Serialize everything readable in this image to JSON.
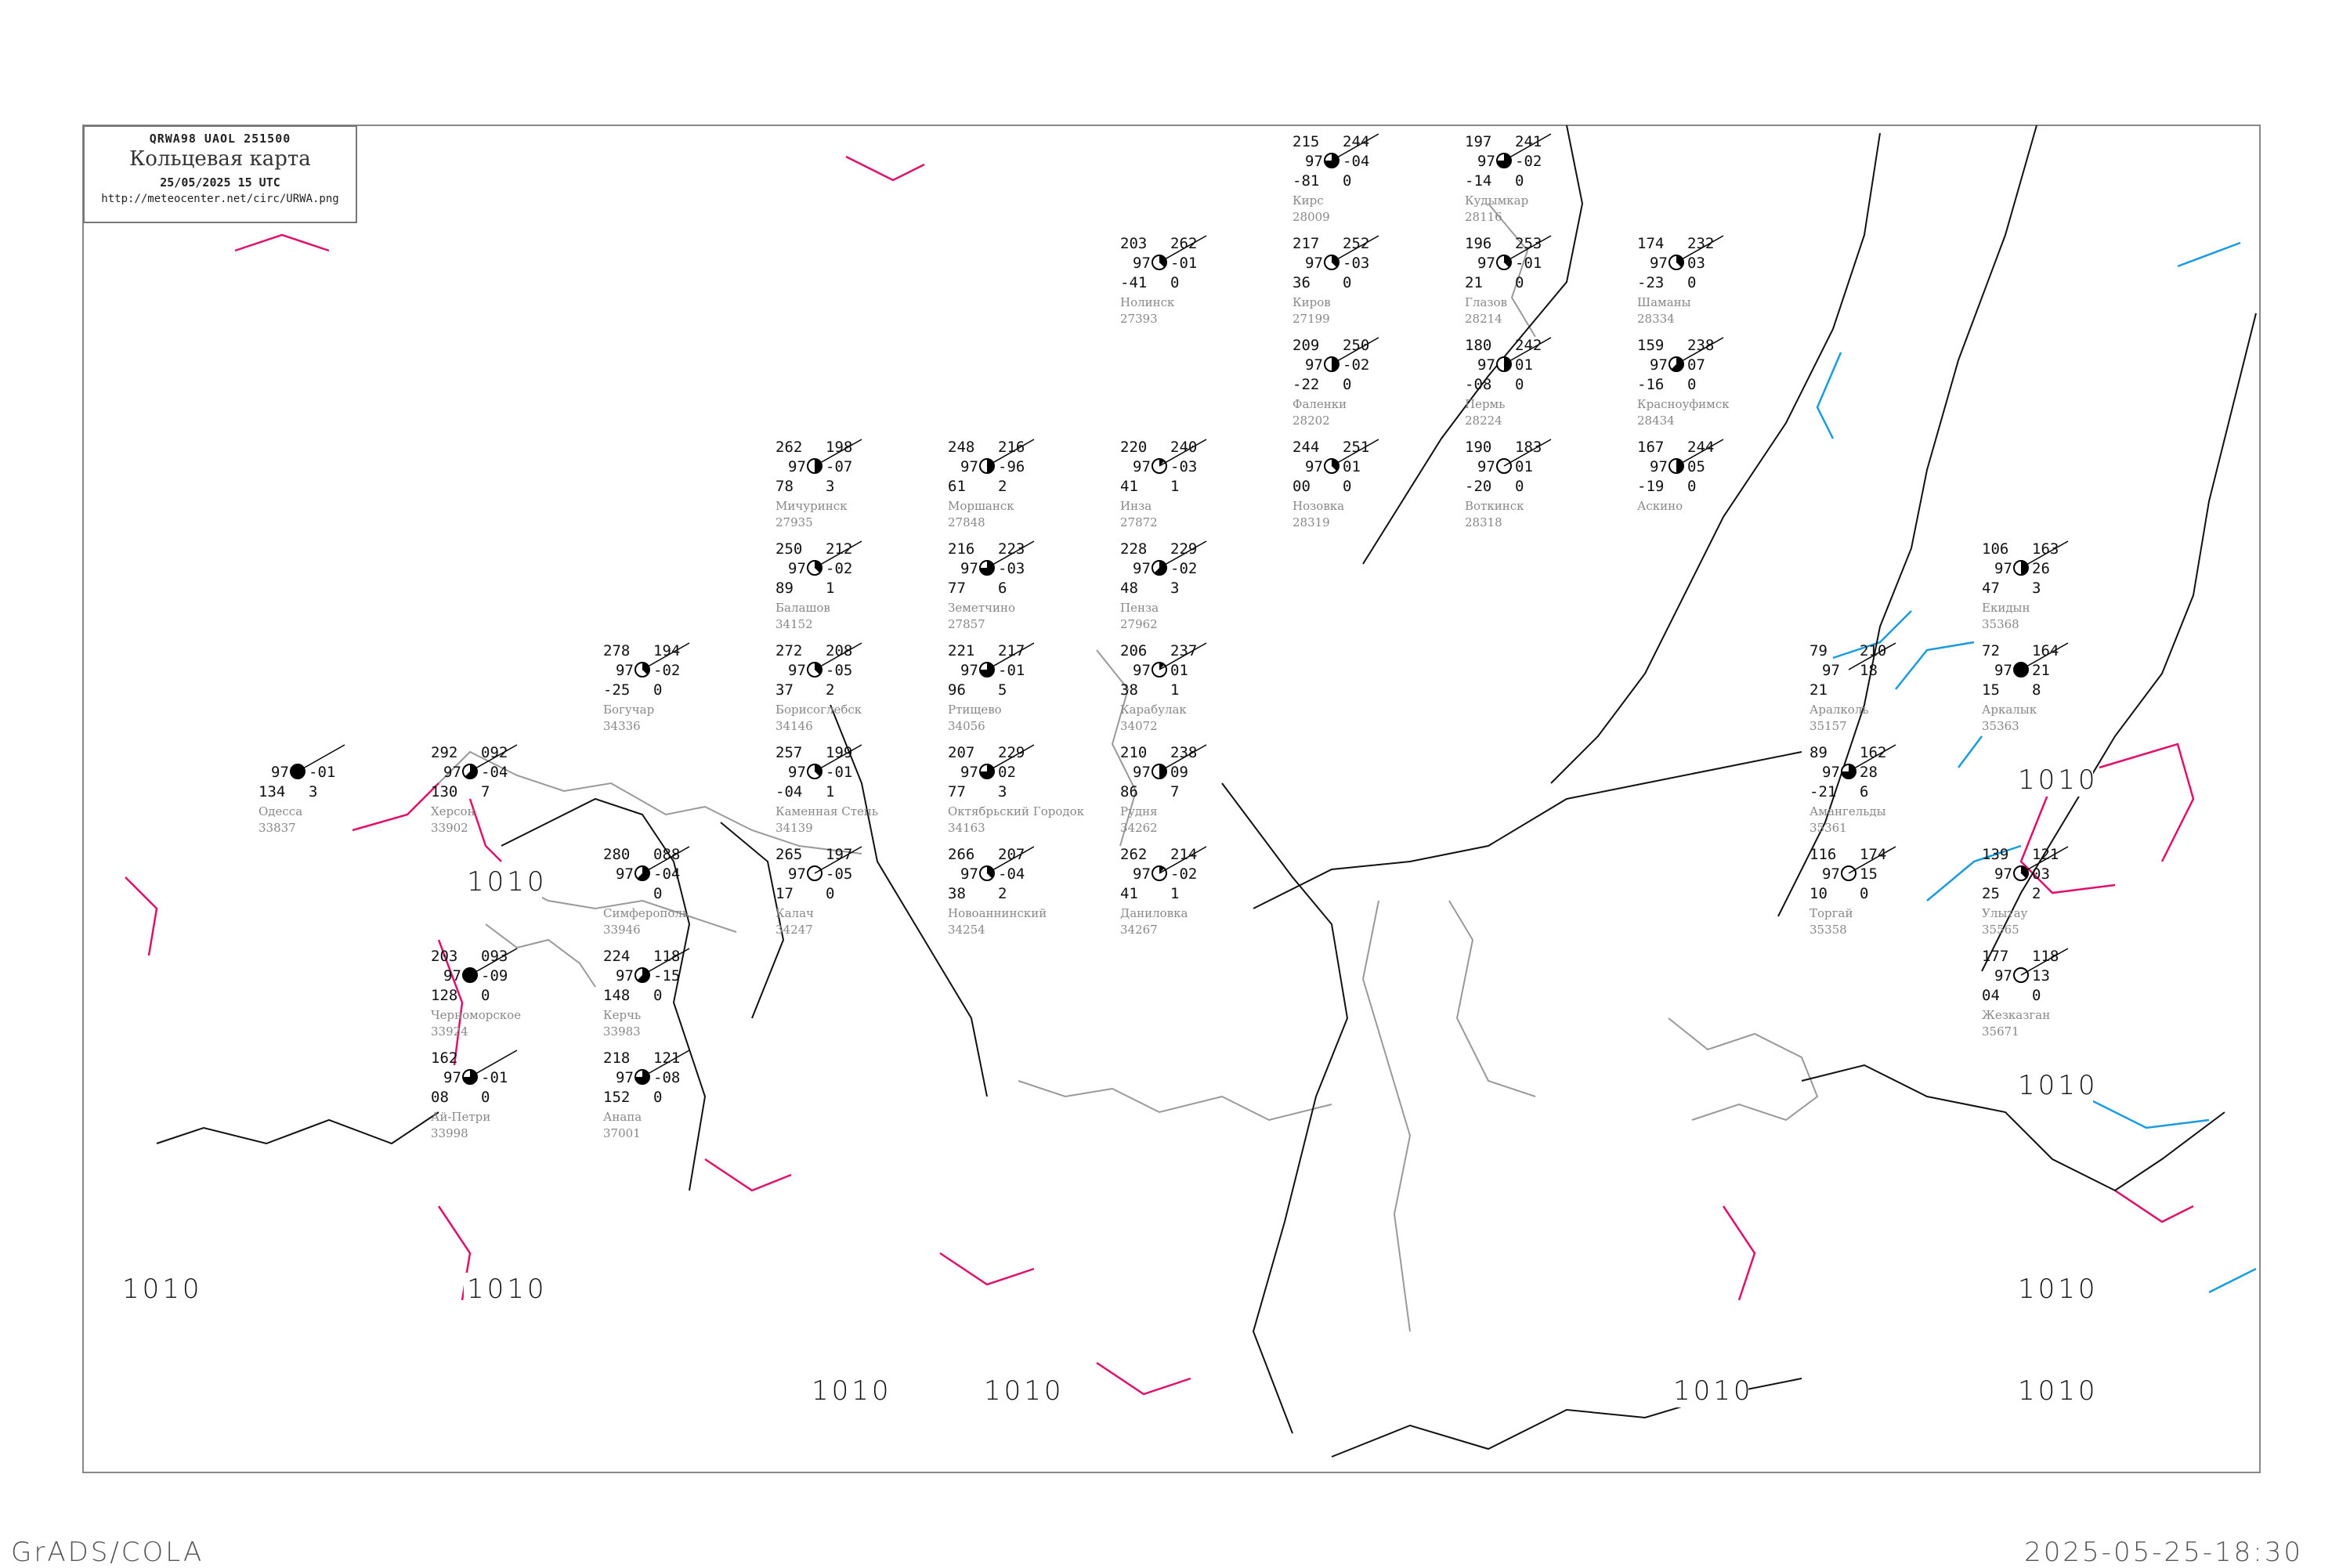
{
  "header": {
    "code": "QRWA98  UAOL  251500",
    "title": "Кольцевая карта",
    "datetime": "25/05/2025 15 UTC",
    "url": "http://meteocenter.net/circ/URWA.png"
  },
  "footer": {
    "software": "GrADS/COLA",
    "timestamp": "2025-05-25-18:30"
  },
  "colors": {
    "isobar": "#111111",
    "coastline": "#999999",
    "isallobar_positive": "#e0106a",
    "isallobar_negative": "#1a9be0",
    "station_name": "#888888"
  },
  "isobar_labels": [
    "1010",
    "1010",
    "1010",
    "1010",
    "1010",
    "1010",
    "1010",
    "1010",
    "1010",
    "1010"
  ],
  "stations": [
    {
      "name": "Моршанск",
      "index": "27848",
      "tl": "248",
      "tr": "216",
      "ml": "97",
      "mr": "-96",
      "bl": "61",
      "br": "2",
      "cloud": 4
    },
    {
      "name": "Земетчино",
      "index": "27857",
      "tl": "216",
      "tr": "223",
      "ml": "97",
      "mr": "-03",
      "bl": "77",
      "br": "6",
      "cloud": 6
    },
    {
      "name": "Мичуринск",
      "index": "27935",
      "tl": "262",
      "tr": "198",
      "ml": "97",
      "mr": "-07",
      "bl": "78",
      "br": "3",
      "cloud": 4
    },
    {
      "name": "Пенза",
      "index": "27962",
      "tl": "228",
      "tr": "229",
      "ml": "97",
      "mr": "-02",
      "bl": "48",
      "br": "3",
      "cloud": 5
    },
    {
      "name": "Инза",
      "index": "27872",
      "tl": "220",
      "tr": "240",
      "ml": "97",
      "mr": "-03",
      "bl": "41",
      "br": "1",
      "cloud": 1
    },
    {
      "name": "Ртищево",
      "index": "34056",
      "tl": "221",
      "tr": "217",
      "ml": "97",
      "mr": "-01",
      "bl": "96",
      "br": "5",
      "cloud": 6
    },
    {
      "name": "Балашов",
      "index": "34152",
      "tl": "250",
      "tr": "212",
      "ml": "97",
      "mr": "-02",
      "bl": "89",
      "br": "1",
      "cloud": 3
    },
    {
      "name": "Борисоглебск",
      "index": "34146",
      "tl": "272",
      "tr": "208",
      "ml": "97",
      "mr": "-05",
      "bl": "37",
      "br": "2",
      "cloud": 3
    },
    {
      "name": "Каменная Степь",
      "index": "34139",
      "tl": "257",
      "tr": "199",
      "ml": "97",
      "mr": "-01",
      "bl": "-04",
      "br": "1",
      "cloud": 3
    },
    {
      "name": "Карабулак",
      "index": "34072",
      "tl": "206",
      "tr": "237",
      "ml": "97",
      "mr": "01",
      "bl": "38",
      "br": "1",
      "cloud": 1
    },
    {
      "name": "Октябрьский Городок",
      "index": "34163",
      "tl": "207",
      "tr": "229",
      "ml": "97",
      "mr": "02",
      "bl": "77",
      "br": "3",
      "cloud": 6
    },
    {
      "name": "Калач",
      "index": "34247",
      "tl": "265",
      "tr": "197",
      "ml": "97",
      "mr": "-05",
      "bl": "17",
      "br": "0",
      "cloud": 0
    },
    {
      "name": "Новоаннинский",
      "index": "34254",
      "tl": "266",
      "tr": "207",
      "ml": "97",
      "mr": "-04",
      "bl": "38",
      "br": "2",
      "cloud": 3
    },
    {
      "name": "Рудня",
      "index": "34262",
      "tl": "210",
      "tr": "238",
      "ml": "97",
      "mr": "09",
      "bl": "86",
      "br": "7",
      "cloud": 4
    },
    {
      "name": "Даниловка",
      "index": "34267",
      "tl": "262",
      "tr": "214",
      "ml": "97",
      "mr": "-02",
      "bl": "41",
      "br": "1",
      "cloud": 1
    },
    {
      "name": "Богучар",
      "index": "34336",
      "tl": "278",
      "tr": "194",
      "ml": "97",
      "mr": "-02",
      "bl": "-25",
      "br": "0",
      "cloud": 3
    },
    {
      "name": "Кирс",
      "index": "28009",
      "tl": "215",
      "tr": "244",
      "ml": "97",
      "mr": "-04",
      "bl": "-81",
      "br": "0",
      "cloud": 6
    },
    {
      "name": "Кудымкар",
      "index": "28116",
      "tl": "197",
      "tr": "241",
      "ml": "97",
      "mr": "-02",
      "bl": "-14",
      "br": "0",
      "cloud": 6
    },
    {
      "name": "Киров",
      "index": "27199",
      "tl": "217",
      "tr": "252",
      "ml": "97",
      "mr": "-03",
      "bl": "36",
      "br": "0",
      "cloud": 3
    },
    {
      "name": "Фаленки",
      "index": "28202",
      "tl": "209",
      "tr": "250",
      "ml": "97",
      "mr": "-02",
      "bl": "-22",
      "br": "0",
      "cloud": 4
    },
    {
      "name": "Глазов",
      "index": "28214",
      "tl": "196",
      "tr": "253",
      "ml": "97",
      "mr": "-01",
      "bl": "21",
      "br": "0",
      "cloud": 3
    },
    {
      "name": "Нолинск",
      "index": "27393",
      "tl": "203",
      "tr": "262",
      "ml": "97",
      "mr": "-01",
      "bl": "-41",
      "br": "0",
      "cloud": 3
    },
    {
      "name": "Пермь",
      "index": "28224",
      "tl": "180",
      "tr": "242",
      "ml": "97",
      "mr": "01",
      "bl": "-08",
      "br": "0",
      "cloud": 4
    },
    {
      "name": "Воткинск",
      "index": "28318",
      "tl": "190",
      "tr": "183",
      "ml": "97",
      "mr": "01",
      "bl": "-20",
      "br": "0",
      "cloud": 0
    },
    {
      "name": "Нозовка",
      "index": "28319",
      "tl": "244",
      "tr": "251",
      "ml": "97",
      "mr": "01",
      "bl": "00",
      "br": "0",
      "cloud": 3
    },
    {
      "name": "Шаманы",
      "index": "28334",
      "tl": "174",
      "tr": "232",
      "ml": "97",
      "mr": "03",
      "bl": "-23",
      "br": "0",
      "cloud": 3
    },
    {
      "name": "Красноуфимск",
      "index": "28434",
      "tl": "159",
      "tr": "238",
      "ml": "97",
      "mr": "07",
      "bl": "-16",
      "br": "0",
      "cloud": 5
    },
    {
      "name": "Аскино",
      "index": "",
      "tl": "167",
      "tr": "244",
      "ml": "97",
      "mr": "05",
      "bl": "-19",
      "br": "0",
      "cloud": 4
    },
    {
      "name": "Аралколь",
      "index": "35157",
      "tl": "79",
      "tr": "210",
      "ml": "97",
      "mr": "18",
      "bl": "21",
      "br": "",
      "cloud": -1
    },
    {
      "name": "Амангельды",
      "index": "35361",
      "tl": "89",
      "tr": "162",
      "ml": "97",
      "mr": "28",
      "bl": "-21",
      "br": "6",
      "cloud": 6
    },
    {
      "name": "Аркалык",
      "index": "35363",
      "tl": "72",
      "tr": "164",
      "ml": "97",
      "mr": "21",
      "bl": "15",
      "br": "8",
      "cloud": 8
    },
    {
      "name": "Екидын",
      "index": "35368",
      "tl": "106",
      "tr": "163",
      "ml": "97",
      "mr": "26",
      "bl": "47",
      "br": "3",
      "cloud": 4
    },
    {
      "name": "Торгай",
      "index": "35358",
      "tl": "116",
      "tr": "174",
      "ml": "97",
      "mr": "15",
      "bl": "10",
      "br": "0",
      "cloud": 0
    },
    {
      "name": "Улытау",
      "index": "35565",
      "tl": "139",
      "tr": "121",
      "ml": "97",
      "mr": "03",
      "bl": "25",
      "br": "2",
      "cloud": 3
    },
    {
      "name": "Жезказган",
      "index": "35671",
      "tl": "177",
      "tr": "118",
      "ml": "97",
      "mr": "13",
      "bl": "04",
      "br": "0",
      "cloud": 0
    },
    {
      "name": "Одесса",
      "index": "33837",
      "tl": "",
      "tr": "",
      "ml": "97",
      "mr": "-01",
      "bl": "134",
      "br": "3",
      "cloud": 8
    },
    {
      "name": "Херсон",
      "index": "33902",
      "tl": "292",
      "tr": "092",
      "ml": "97",
      "mr": "-04",
      "bl": "130",
      "br": "7",
      "cloud": 5
    },
    {
      "name": "Черноморское",
      "index": "33924",
      "tl": "203",
      "tr": "093",
      "ml": "97",
      "mr": "-09",
      "bl": "128",
      "br": "0",
      "cloud": 8
    },
    {
      "name": "Симферополь",
      "index": "33946",
      "tl": "280",
      "tr": "088",
      "ml": "97",
      "mr": "-04",
      "bl": "",
      "br": "0",
      "cloud": 5
    },
    {
      "name": "Ай-Петри",
      "index": "33998",
      "tl": "162",
      "tr": "",
      "ml": "97",
      "mr": "-01",
      "bl": "08",
      "br": "0",
      "cloud": 6
    },
    {
      "name": "Керчь",
      "index": "33983",
      "tl": "224",
      "tr": "118",
      "ml": "97",
      "mr": "-15",
      "bl": "148",
      "br": "0",
      "cloud": 5
    },
    {
      "name": "Анапа",
      "index": "37001",
      "tl": "218",
      "tr": "121",
      "ml": "97",
      "mr": "-08",
      "bl": "152",
      "br": "0",
      "cloud": 6
    }
  ]
}
